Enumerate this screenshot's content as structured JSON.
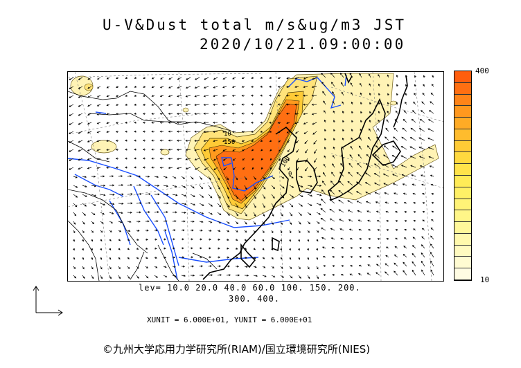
{
  "title": {
    "line1": "U-V&Dust total m/s&ug/m3 JST",
    "line2": "2020/10/21.09:00:00"
  },
  "colorbar": {
    "max_label": "400",
    "min_label": "10",
    "colors_top_to_bottom": [
      "#ff5e0e",
      "#ff6f12",
      "#ff8418",
      "#ff981e",
      "#ffab25",
      "#ffbc2d",
      "#ffcb36",
      "#ffd93f",
      "#ffe34a",
      "#ffeb57",
      "#fff066",
      "#fff377",
      "#fff688",
      "#fff89a",
      "#fff9ad",
      "#fffac0",
      "#fffbd2",
      "#fffce3"
    ]
  },
  "levels": {
    "line1": "lev= 10.0 20.0 40.0 60.0 100. 150. 200.",
    "line2": "300. 400."
  },
  "units": "XUNIT = 6.000E+01, YUNIT = 6.000E+01",
  "contour_labels": [
    "10",
    "150",
    "0",
    "100"
  ],
  "credit": "©九州大学応用力学研究所(RIAM)/国立環境研究所(NIES)"
}
